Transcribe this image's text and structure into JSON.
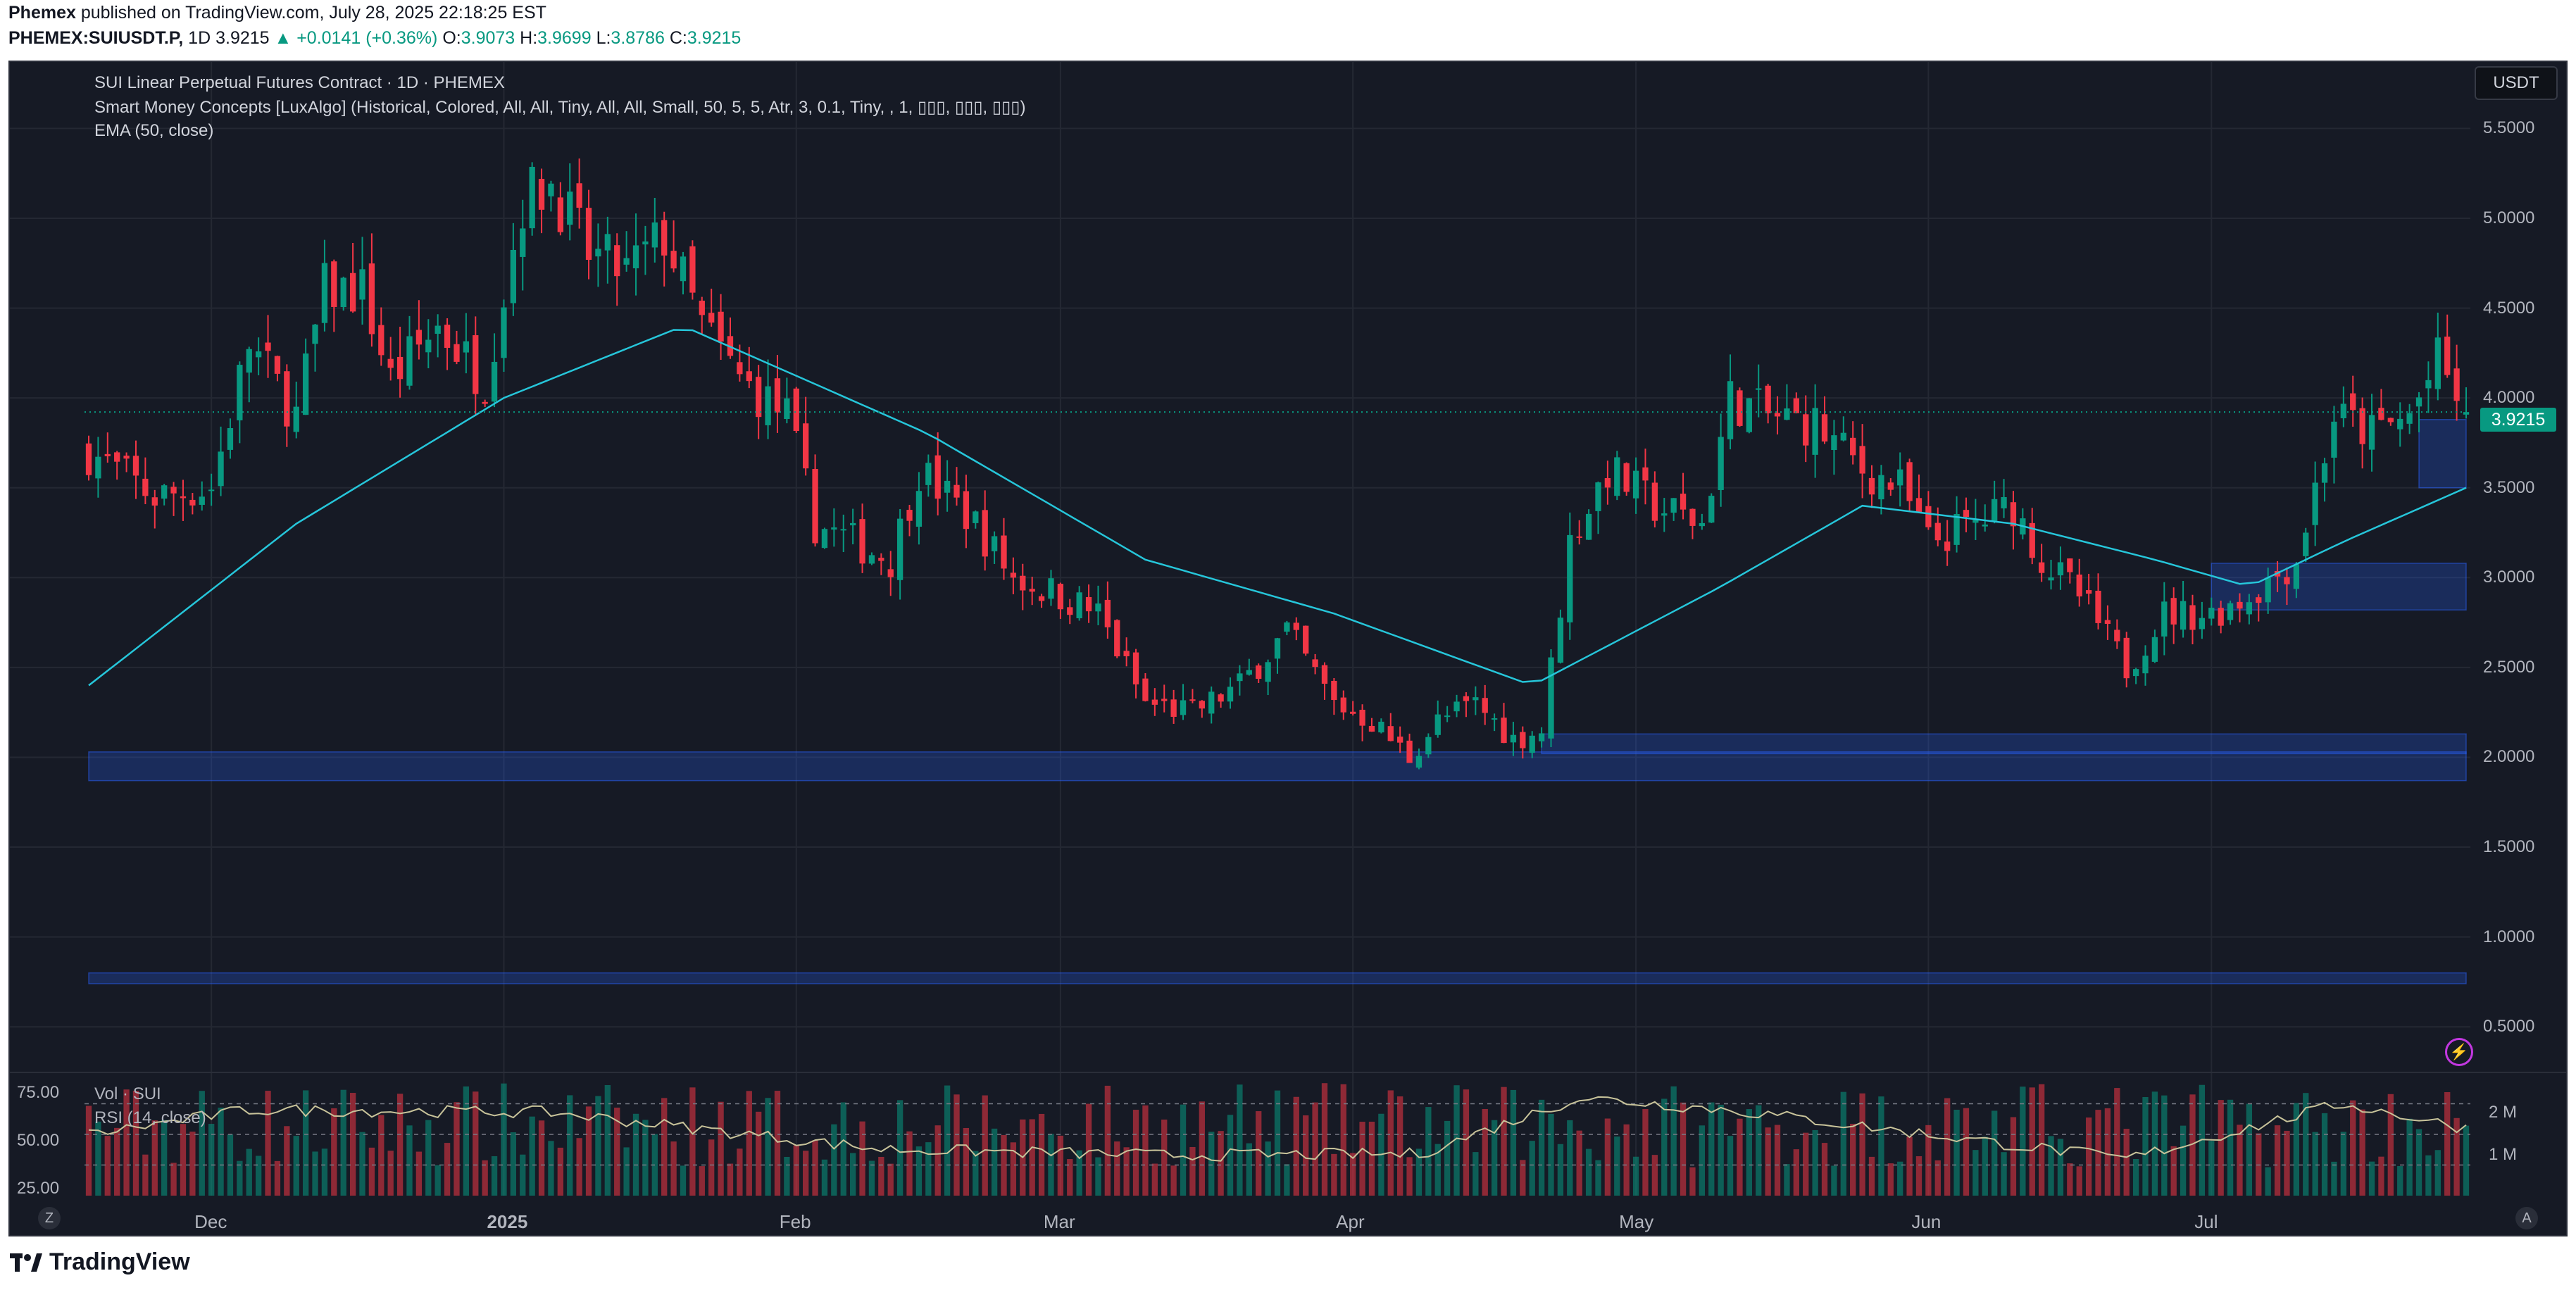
{
  "header": {
    "publisher": "Phemex",
    "published_text": "published on TradingView.com, July 28, 2025 22:18:25 EST",
    "symbol": "PHEMEX:SUIUSDT.P,",
    "interval": "1D",
    "last": "3.9215",
    "change": "▲ +0.0141 (+0.36%)",
    "o_label": "O:",
    "o_value": "3.9073",
    "h_label": "H:",
    "h_value": "3.9699",
    "l_label": "L:",
    "l_value": "3.8786",
    "c_label": "C:",
    "c_value": "3.9215"
  },
  "legend": {
    "line1": "SUI Linear Perpetual Futures Contract · 1D · PHEMEX",
    "line2": "Smart Money Concepts [LuxAlgo] (Historical, Colored, All, All, Tiny, All, All, Small, 50, 5, 5, Atr, 3, 0.1, Tiny, , 1, ▯▯▯, ▯▯▯, ▯▯▯)",
    "line3": "EMA (50, close)"
  },
  "currency_button": "USDT",
  "price_tag": "3.9215",
  "sub_pane": {
    "vol_label": "Vol · SUI",
    "rsi_label": "RSI (14, close)",
    "rsi_ticks": [
      "75.00",
      "50.00",
      "25.00"
    ],
    "vol_ticks": [
      "2 M",
      "1 M"
    ]
  },
  "badges": {
    "left": "Z",
    "right": "A"
  },
  "footer_brand": "TradingView",
  "colors": {
    "up": "#089981",
    "down": "#f23645",
    "ema": "#26c6da",
    "zone": "#2962ff",
    "background": "#161a25"
  },
  "chart_data": {
    "type": "candlestick",
    "title": "SUI Linear Perpetual Futures Contract · 1D · PHEMEX",
    "y_unit": "USDT",
    "y_ticks": [
      "5.5000",
      "5.0000",
      "4.5000",
      "4.0000",
      "3.5000",
      "3.0000",
      "2.5000",
      "2.0000",
      "1.5000",
      "1.0000",
      "0.5000"
    ],
    "ylim": [
      0.25,
      5.87
    ],
    "x_ticks": [
      "Dec",
      "2025",
      "Feb",
      "Mar",
      "Apr",
      "May",
      "Jun",
      "Jul"
    ],
    "close_anchors": [
      {
        "date": "2024-11-18",
        "close": 3.7
      },
      {
        "date": "2024-11-25",
        "close": 3.45
      },
      {
        "date": "2024-12-01",
        "close": 3.5
      },
      {
        "date": "2024-12-05",
        "close": 4.3
      },
      {
        "date": "2024-12-10",
        "close": 3.9
      },
      {
        "date": "2024-12-13",
        "close": 4.6
      },
      {
        "date": "2024-12-17",
        "close": 4.6
      },
      {
        "date": "2024-12-20",
        "close": 4.1
      },
      {
        "date": "2024-12-25",
        "close": 4.4
      },
      {
        "date": "2024-12-30",
        "close": 4.1
      },
      {
        "date": "2025-01-03",
        "close": 5.1
      },
      {
        "date": "2025-01-06",
        "close": 5.2
      },
      {
        "date": "2025-01-10",
        "close": 4.8
      },
      {
        "date": "2025-01-14",
        "close": 4.7
      },
      {
        "date": "2025-01-18",
        "close": 4.9
      },
      {
        "date": "2025-01-22",
        "close": 4.4
      },
      {
        "date": "2025-01-26",
        "close": 4.1
      },
      {
        "date": "2025-01-31",
        "close": 3.9
      },
      {
        "date": "2025-02-03",
        "close": 3.3
      },
      {
        "date": "2025-02-07",
        "close": 3.2
      },
      {
        "date": "2025-02-11",
        "close": 3.1
      },
      {
        "date": "2025-02-14",
        "close": 3.6
      },
      {
        "date": "2025-02-20",
        "close": 3.3
      },
      {
        "date": "2025-02-24",
        "close": 3.0
      },
      {
        "date": "2025-03-01",
        "close": 2.9
      },
      {
        "date": "2025-03-05",
        "close": 2.8
      },
      {
        "date": "2025-03-10",
        "close": 2.3
      },
      {
        "date": "2025-03-15",
        "close": 2.25
      },
      {
        "date": "2025-03-20",
        "close": 2.4
      },
      {
        "date": "2025-03-25",
        "close": 2.7
      },
      {
        "date": "2025-03-30",
        "close": 2.3
      },
      {
        "date": "2025-04-03",
        "close": 2.2
      },
      {
        "date": "2025-04-07",
        "close": 2.0
      },
      {
        "date": "2025-04-10",
        "close": 2.2
      },
      {
        "date": "2025-04-14",
        "close": 2.3
      },
      {
        "date": "2025-04-18",
        "close": 2.1
      },
      {
        "date": "2025-04-21",
        "close": 2.15
      },
      {
        "date": "2025-04-24",
        "close": 3.2
      },
      {
        "date": "2025-04-28",
        "close": 3.6
      },
      {
        "date": "2025-05-03",
        "close": 3.4
      },
      {
        "date": "2025-05-08",
        "close": 3.3
      },
      {
        "date": "2025-05-11",
        "close": 4.0
      },
      {
        "date": "2025-05-15",
        "close": 3.9
      },
      {
        "date": "2025-05-20",
        "close": 3.85
      },
      {
        "date": "2025-05-25",
        "close": 3.6
      },
      {
        "date": "2025-05-29",
        "close": 3.5
      },
      {
        "date": "2025-06-01",
        "close": 3.2
      },
      {
        "date": "2025-06-06",
        "close": 3.3
      },
      {
        "date": "2025-06-10",
        "close": 3.4
      },
      {
        "date": "2025-06-13",
        "close": 3.1
      },
      {
        "date": "2025-06-17",
        "close": 2.9
      },
      {
        "date": "2025-06-22",
        "close": 2.5
      },
      {
        "date": "2025-06-26",
        "close": 2.8
      },
      {
        "date": "2025-07-01",
        "close": 2.8
      },
      {
        "date": "2025-07-05",
        "close": 2.9
      },
      {
        "date": "2025-07-10",
        "close": 3.1
      },
      {
        "date": "2025-07-14",
        "close": 3.9
      },
      {
        "date": "2025-07-18",
        "close": 3.8
      },
      {
        "date": "2025-07-22",
        "close": 3.9
      },
      {
        "date": "2025-07-25",
        "close": 4.2
      },
      {
        "date": "2025-07-28",
        "close": 3.9215
      }
    ],
    "ema50_anchors": [
      {
        "date": "2024-11-18",
        "value": 2.4
      },
      {
        "date": "2024-12-10",
        "value": 3.3
      },
      {
        "date": "2025-01-01",
        "value": 4.0
      },
      {
        "date": "2025-01-20",
        "value": 4.4
      },
      {
        "date": "2025-02-15",
        "value": 3.8
      },
      {
        "date": "2025-03-10",
        "value": 3.1
      },
      {
        "date": "2025-03-30",
        "value": 2.8
      },
      {
        "date": "2025-04-20",
        "value": 2.4
      },
      {
        "date": "2025-05-10",
        "value": 2.95
      },
      {
        "date": "2025-05-25",
        "value": 3.4
      },
      {
        "date": "2025-06-10",
        "value": 3.3
      },
      {
        "date": "2025-06-25",
        "value": 3.1
      },
      {
        "date": "2025-07-05",
        "value": 2.95
      },
      {
        "date": "2025-07-15",
        "value": 3.2
      },
      {
        "date": "2025-07-28",
        "value": 3.5
      }
    ],
    "zones": [
      {
        "from": "2024-11-18",
        "to": "2025-07-28",
        "low": 1.87,
        "high": 2.03
      },
      {
        "from": "2025-04-21",
        "to": "2025-07-28",
        "low": 2.02,
        "high": 2.13
      },
      {
        "from": "2024-11-18",
        "to": "2025-07-28",
        "low": 0.74,
        "high": 0.8
      },
      {
        "from": "2025-07-01",
        "to": "2025-07-28",
        "low": 2.82,
        "high": 3.08
      },
      {
        "from": "2025-07-23",
        "to": "2025-07-28",
        "low": 3.5,
        "high": 3.88
      }
    ],
    "rsi_range": [
      0,
      100
    ],
    "rsi_anchors": [
      {
        "date": "2024-11-18",
        "value": 50
      },
      {
        "date": "2024-12-05",
        "value": 70
      },
      {
        "date": "2025-01-06",
        "value": 68
      },
      {
        "date": "2025-02-10",
        "value": 38
      },
      {
        "date": "2025-03-12",
        "value": 33
      },
      {
        "date": "2025-04-08",
        "value": 34
      },
      {
        "date": "2025-04-25",
        "value": 80
      },
      {
        "date": "2025-05-11",
        "value": 70
      },
      {
        "date": "2025-06-22",
        "value": 30
      },
      {
        "date": "2025-07-15",
        "value": 75
      },
      {
        "date": "2025-07-28",
        "value": 55
      }
    ],
    "volume_ticks": [
      "2 M",
      "1 M"
    ],
    "last_price": 3.9215
  }
}
